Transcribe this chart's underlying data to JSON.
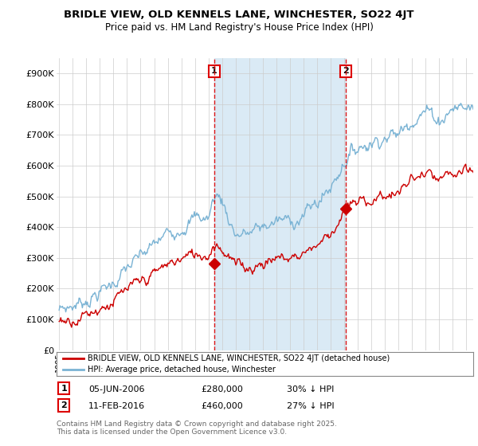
{
  "title": "BRIDLE VIEW, OLD KENNELS LANE, WINCHESTER, SO22 4JT",
  "subtitle": "Price paid vs. HM Land Registry's House Price Index (HPI)",
  "legend_line1": "BRIDLE VIEW, OLD KENNELS LANE, WINCHESTER, SO22 4JT (detached house)",
  "legend_line2": "HPI: Average price, detached house, Winchester",
  "footnote": "Contains HM Land Registry data © Crown copyright and database right 2025.\nThis data is licensed under the Open Government Licence v3.0.",
  "sale1_label": "1",
  "sale1_date": "05-JUN-2006",
  "sale1_price": "£280,000",
  "sale1_hpi": "30% ↓ HPI",
  "sale2_label": "2",
  "sale2_date": "11-FEB-2016",
  "sale2_price": "£460,000",
  "sale2_hpi": "27% ↓ HPI",
  "hpi_color": "#7ab3d4",
  "price_color": "#cc0000",
  "vline_color": "#dd0000",
  "background_color": "#ffffff",
  "shade_color": "#daeaf5",
  "grid_color": "#cccccc",
  "ylim": [
    0,
    950000
  ],
  "yticks": [
    0,
    100000,
    200000,
    300000,
    400000,
    500000,
    600000,
    700000,
    800000,
    900000
  ],
  "sale1_year": 2006.43,
  "sale1_price_val": 280000,
  "sale2_year": 2016.11,
  "sale2_price_val": 460000,
  "xlim_left": 1994.8,
  "xlim_right": 2025.5
}
